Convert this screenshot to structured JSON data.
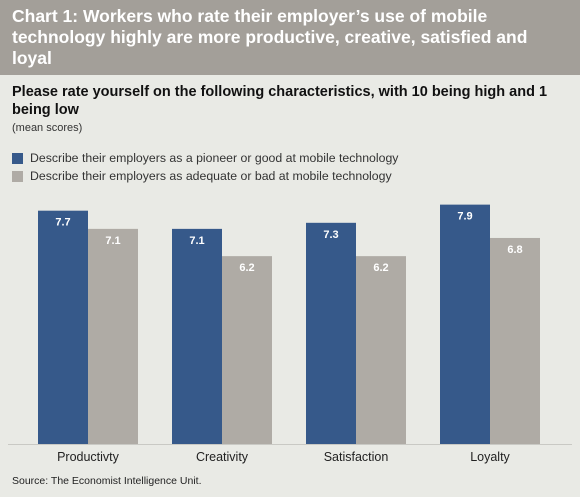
{
  "title": "Chart 1: Workers who rate their employer’s use of mobile technology highly are more productive, creative, satisfied and loyal",
  "subtitle": "Please rate yourself on the following characteristics, with 10 being high and 1 being low",
  "note": "(mean scores)",
  "source": "Source: The Economist Intelligence Unit.",
  "colors": {
    "series_1": "#36598a",
    "series_2": "#afaba5",
    "title_background": "#a39f99",
    "chart_background": "#e9eae5"
  },
  "chart_data": {
    "type": "bar",
    "categories": [
      "Productivty",
      "Creativity",
      "Satisfaction",
      "Loyalty"
    ],
    "series": [
      {
        "name": "Describe their employers as a pioneer or good at mobile technology",
        "values": [
          7.7,
          7.1,
          7.3,
          7.9
        ]
      },
      {
        "name": "Describe their employers as adequate or bad at mobile technology",
        "values": [
          7.1,
          6.2,
          6.2,
          6.8
        ]
      }
    ],
    "legend": "top-left",
    "grid": false,
    "data_labels": true
  }
}
